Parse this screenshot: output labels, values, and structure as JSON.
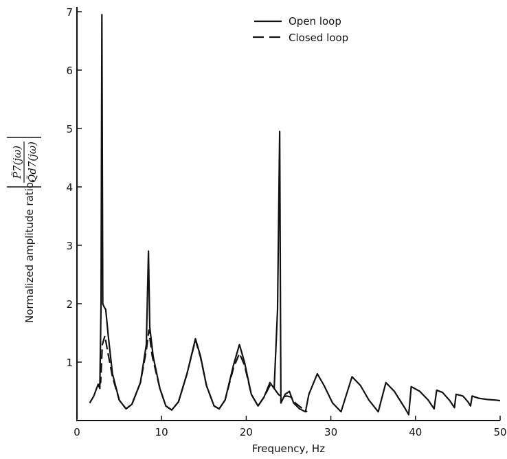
{
  "chart_data": {
    "type": "line",
    "xlabel": "Frequency, Hz",
    "ylabel": "Normalized amplitude ratio,",
    "ylabel_ratio": {
      "numerator": "P̃7(jω)",
      "denominator": "Q̃d7(jω)"
    },
    "xlim": [
      0,
      50
    ],
    "ylim": [
      0,
      7
    ],
    "x_ticks": [
      0,
      10,
      20,
      30,
      40,
      50
    ],
    "y_ticks": [
      1,
      2,
      3,
      4,
      5,
      6,
      7
    ],
    "grid": false,
    "legend_position": "top-right",
    "series": [
      {
        "name": "Open loop",
        "style": "solid",
        "points": [
          [
            1.5,
            0.3
          ],
          [
            2.0,
            0.42
          ],
          [
            2.5,
            0.62
          ],
          [
            2.7,
            0.55
          ],
          [
            2.85,
            2.0
          ],
          [
            2.95,
            6.95
          ],
          [
            3.05,
            2.0
          ],
          [
            3.2,
            1.95
          ],
          [
            3.4,
            1.9
          ],
          [
            3.7,
            1.45
          ],
          [
            4.2,
            0.8
          ],
          [
            5.0,
            0.35
          ],
          [
            5.8,
            0.2
          ],
          [
            6.5,
            0.28
          ],
          [
            7.5,
            0.65
          ],
          [
            8.2,
            1.3
          ],
          [
            8.45,
            2.9
          ],
          [
            8.6,
            1.6
          ],
          [
            9.0,
            1.1
          ],
          [
            9.8,
            0.55
          ],
          [
            10.5,
            0.25
          ],
          [
            11.2,
            0.18
          ],
          [
            12.0,
            0.32
          ],
          [
            13.0,
            0.8
          ],
          [
            14.0,
            1.4
          ],
          [
            14.6,
            1.1
          ],
          [
            15.3,
            0.6
          ],
          [
            16.2,
            0.25
          ],
          [
            16.8,
            0.2
          ],
          [
            17.5,
            0.35
          ],
          [
            18.5,
            0.95
          ],
          [
            19.2,
            1.3
          ],
          [
            19.8,
            1.0
          ],
          [
            20.6,
            0.45
          ],
          [
            21.4,
            0.25
          ],
          [
            22.1,
            0.4
          ],
          [
            22.8,
            0.65
          ],
          [
            23.3,
            0.55
          ],
          [
            23.7,
            1.9
          ],
          [
            23.95,
            4.95
          ],
          [
            24.1,
            0.3
          ],
          [
            24.6,
            0.45
          ],
          [
            25.1,
            0.5
          ],
          [
            25.6,
            0.3
          ],
          [
            26.3,
            0.2
          ],
          [
            27.0,
            0.15
          ],
          [
            27.4,
            0.45
          ],
          [
            28.4,
            0.8
          ],
          [
            29.2,
            0.6
          ],
          [
            30.2,
            0.3
          ],
          [
            31.2,
            0.15
          ],
          [
            32.5,
            0.75
          ],
          [
            33.5,
            0.6
          ],
          [
            34.5,
            0.35
          ],
          [
            35.6,
            0.15
          ],
          [
            36.5,
            0.65
          ],
          [
            37.5,
            0.5
          ],
          [
            38.8,
            0.2
          ],
          [
            39.2,
            0.1
          ],
          [
            39.5,
            0.58
          ],
          [
            40.5,
            0.5
          ],
          [
            41.5,
            0.35
          ],
          [
            42.2,
            0.2
          ],
          [
            42.5,
            0.52
          ],
          [
            43.2,
            0.48
          ],
          [
            44.0,
            0.35
          ],
          [
            44.6,
            0.22
          ],
          [
            44.8,
            0.45
          ],
          [
            45.6,
            0.42
          ],
          [
            46.2,
            0.32
          ],
          [
            46.5,
            0.25
          ],
          [
            46.7,
            0.42
          ],
          [
            47.5,
            0.38
          ],
          [
            48.5,
            0.36
          ],
          [
            49.5,
            0.35
          ],
          [
            50.0,
            0.34
          ]
        ]
      },
      {
        "name": "Closed loop",
        "style": "dashed",
        "points": [
          [
            2.5,
            0.6
          ],
          [
            2.8,
            0.65
          ],
          [
            3.0,
            1.3
          ],
          [
            3.3,
            1.45
          ],
          [
            3.6,
            1.2
          ],
          [
            4.2,
            0.75
          ],
          [
            5.0,
            0.35
          ],
          [
            5.8,
            0.2
          ],
          [
            6.5,
            0.28
          ],
          [
            7.5,
            0.65
          ],
          [
            8.2,
            1.2
          ],
          [
            8.5,
            1.55
          ],
          [
            8.9,
            1.1
          ],
          [
            9.8,
            0.55
          ],
          [
            10.5,
            0.25
          ],
          [
            11.2,
            0.18
          ],
          [
            12.0,
            0.32
          ],
          [
            13.0,
            0.8
          ],
          [
            14.0,
            1.38
          ],
          [
            14.6,
            1.08
          ],
          [
            15.3,
            0.6
          ],
          [
            16.2,
            0.25
          ],
          [
            16.8,
            0.2
          ],
          [
            17.5,
            0.35
          ],
          [
            18.5,
            0.9
          ],
          [
            19.2,
            1.15
          ],
          [
            19.8,
            0.95
          ],
          [
            20.6,
            0.45
          ],
          [
            21.4,
            0.25
          ],
          [
            22.1,
            0.4
          ],
          [
            22.8,
            0.6
          ],
          [
            23.3,
            0.55
          ],
          [
            23.8,
            0.45
          ],
          [
            24.2,
            0.4
          ],
          [
            24.8,
            0.42
          ],
          [
            25.3,
            0.4
          ],
          [
            25.8,
            0.3
          ],
          [
            26.5,
            0.22
          ],
          [
            27.2,
            0.15
          ]
        ]
      }
    ]
  }
}
